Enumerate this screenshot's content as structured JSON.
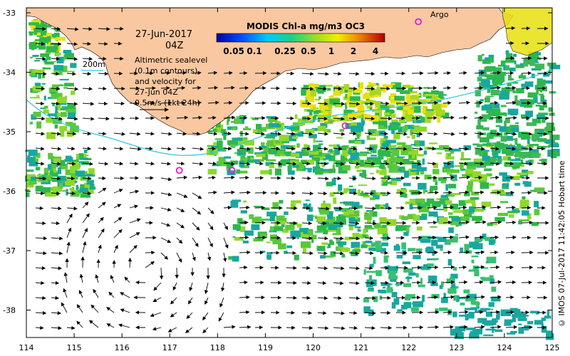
{
  "map": {
    "date_line": "27-Jun-2017",
    "time_line": "04Z",
    "legend_lines": [
      "Altimetric sealevel",
      "(0.1m contours)",
      "and velocity for",
      "27-Jun 04Z",
      "0.5m/s (1kt 24h)"
    ],
    "depth_label": "200m",
    "argo_label": "Argo",
    "credit": "© IMOS 07-Jul-2017 11:42:05 Hobart time",
    "colorbar_title": "MODIS Chl-a mg/m3 OC3",
    "colorbar_ticks": [
      "0.05",
      "0.1",
      "0.25",
      "0.5",
      "1",
      "2",
      "4"
    ],
    "x_ticks": [
      "114",
      "115",
      "116",
      "117",
      "118",
      "119",
      "120",
      "121",
      "122",
      "123",
      "124",
      "125"
    ],
    "y_ticks": [
      "-33",
      "-34",
      "-35",
      "-36",
      "-37",
      "-38"
    ],
    "colors": {
      "land": "#F9C8A0",
      "chl_low": "#18A7A0",
      "chl_mid": "#2DB84C",
      "chl_high": "#E8E010",
      "isobath": "#2EC8E8",
      "argo": "#E020D0"
    },
    "argo_floats": [
      {
        "lon": 122.2,
        "lat": -33.15
      },
      {
        "lon": 120.67,
        "lat": -34.9
      },
      {
        "lon": 117.2,
        "lat": -35.65
      },
      {
        "lon": 118.3,
        "lat": -35.65
      }
    ]
  }
}
